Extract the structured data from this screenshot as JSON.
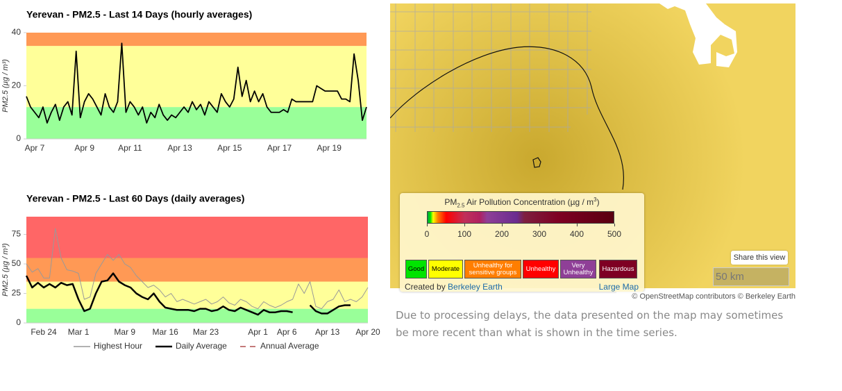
{
  "chart_data": [
    {
      "type": "line",
      "title": "Yerevan - PM2.5 - Last 14 Days (hourly averages)",
      "y_label": "PM2.5 (µg / m³)",
      "categories": [
        null,
        null,
        "Apr 7",
        null,
        null,
        null,
        null,
        null,
        null,
        null,
        null,
        null,
        null,
        null,
        "Apr 9",
        null,
        null,
        null,
        null,
        null,
        null,
        null,
        null,
        null,
        null,
        "Apr 11",
        null,
        null,
        null,
        null,
        null,
        null,
        null,
        null,
        null,
        null,
        null,
        "Apr 13",
        null,
        null,
        null,
        null,
        null,
        null,
        null,
        null,
        null,
        null,
        null,
        "Apr 15",
        null,
        null,
        null,
        null,
        null,
        null,
        null,
        null,
        null,
        null,
        null,
        "Apr 17",
        null,
        null,
        null,
        null,
        null,
        null,
        null,
        null,
        null,
        null,
        null,
        "Apr 19",
        null,
        null,
        null,
        null,
        null,
        null,
        null,
        null,
        null
      ],
      "values": [
        16,
        12,
        10,
        8,
        12,
        6,
        10,
        13,
        7,
        12,
        14,
        9,
        33,
        8,
        14,
        17,
        15,
        12,
        9,
        17,
        12,
        10,
        14,
        36,
        10,
        14,
        12,
        9,
        12,
        6,
        10,
        8,
        13,
        9,
        7,
        9,
        8,
        10,
        12,
        10,
        14,
        11,
        13,
        9,
        14,
        12,
        10,
        17,
        14,
        12,
        15,
        27,
        16,
        22,
        14,
        18,
        14,
        17,
        12,
        10,
        10,
        10,
        11,
        10,
        15,
        14,
        14,
        14,
        14,
        14,
        20,
        19,
        18,
        18,
        18,
        18,
        15,
        15,
        14,
        32,
        22,
        7,
        12
      ],
      "color": "#000000",
      "ylim": [
        0,
        40
      ],
      "yticks": [
        0,
        20,
        40
      ],
      "bands": [
        {
          "from": 0,
          "to": 12,
          "color": "#99ff99"
        },
        {
          "from": 12,
          "to": 35,
          "color": "#ffff99"
        },
        {
          "from": 35,
          "to": 40,
          "color": "#ff9955"
        }
      ]
    },
    {
      "type": "line",
      "title": "Yerevan - PM2.5 - Last 60 Days (daily averages)",
      "y_label": "PM2.5 (µg / m³)",
      "categories": [
        null,
        null,
        null,
        "Feb 24",
        null,
        null,
        null,
        null,
        null,
        "Mar 1",
        null,
        null,
        null,
        null,
        null,
        null,
        null,
        "Mar 9",
        null,
        null,
        null,
        null,
        null,
        null,
        "Mar 16",
        null,
        null,
        null,
        null,
        null,
        null,
        "Mar 23",
        null,
        null,
        null,
        null,
        null,
        null,
        null,
        null,
        "Apr 1",
        null,
        null,
        null,
        null,
        "Apr 6",
        null,
        null,
        null,
        null,
        null,
        null,
        "Apr 13",
        null,
        null,
        null,
        null,
        null,
        null,
        "Apr 20"
      ],
      "series": [
        {
          "name": "Highest Hour",
          "color": "#999999",
          "values": [
            50,
            43,
            46,
            38,
            38,
            80,
            55,
            45,
            44,
            42,
            20,
            22,
            42,
            50,
            58,
            53,
            58,
            50,
            47,
            40,
            35,
            30,
            32,
            28,
            22,
            25,
            18,
            20,
            18,
            16,
            18,
            20,
            16,
            18,
            22,
            17,
            15,
            20,
            18,
            14,
            12,
            18,
            15,
            13,
            15,
            18,
            20,
            33,
            25,
            35,
            14,
            12,
            18,
            20,
            28,
            18,
            20,
            18,
            22,
            30
          ]
        },
        {
          "name": "Daily Average",
          "color": "#000000",
          "values": [
            40,
            30,
            34,
            30,
            33,
            30,
            34,
            32,
            33,
            20,
            10,
            12,
            25,
            35,
            36,
            42,
            35,
            32,
            30,
            25,
            22,
            20,
            25,
            18,
            13,
            12,
            11,
            11,
            11,
            10,
            12,
            12,
            10,
            11,
            14,
            11,
            10,
            13,
            11,
            9,
            7,
            11,
            9,
            9,
            10,
            10,
            9,
            null,
            null,
            15,
            10,
            8,
            8,
            11,
            14,
            15,
            15,
            null,
            null,
            null
          ]
        }
      ],
      "legend_extra": [
        {
          "name": "Annual Average",
          "color": "#c47a7a",
          "dash": true
        }
      ],
      "ylim": [
        0,
        90
      ],
      "yticks": [
        0,
        25,
        50,
        75
      ],
      "bands": [
        {
          "from": 0,
          "to": 12,
          "color": "#99ff99"
        },
        {
          "from": 12,
          "to": 35,
          "color": "#ffff99"
        },
        {
          "from": 35,
          "to": 55,
          "color": "#ff9955"
        },
        {
          "from": 55,
          "to": 90,
          "color": "#ff6666"
        }
      ]
    }
  ],
  "map": {
    "legend_title": [
      "PM",
      "2.5",
      " Air Pollution Concentration (µg / m",
      "3",
      ")"
    ],
    "scale_ticks": [
      0,
      100,
      200,
      300,
      400,
      500
    ],
    "categories": [
      {
        "label": "Good",
        "color": "#00e400",
        "text": "#000000"
      },
      {
        "label": "Moderate",
        "color": "#ffff00",
        "text": "#000000"
      },
      {
        "label": "Unhealthy for sensitive groups",
        "color": "#ff7e00",
        "text": "#ffffff"
      },
      {
        "label": "Unhealthy",
        "color": "#ff0000",
        "text": "#ffffff"
      },
      {
        "label": "Very Unhealthy",
        "color": "#8f3f97",
        "text": "#ffffff"
      },
      {
        "label": "Hazardous",
        "color": "#7e0023",
        "text": "#ffffff"
      }
    ],
    "credit_prefix": "Created by",
    "credit_link": "Berkeley Earth",
    "large_map": "Large Map",
    "share": "Share this view",
    "scale_bar": "50 km",
    "attribution": "© OpenStreetMap contributors © Berkeley Earth"
  },
  "caption": "Due to processing delays, the data presented on the map may sometimes be more recent than what is shown in the time series."
}
